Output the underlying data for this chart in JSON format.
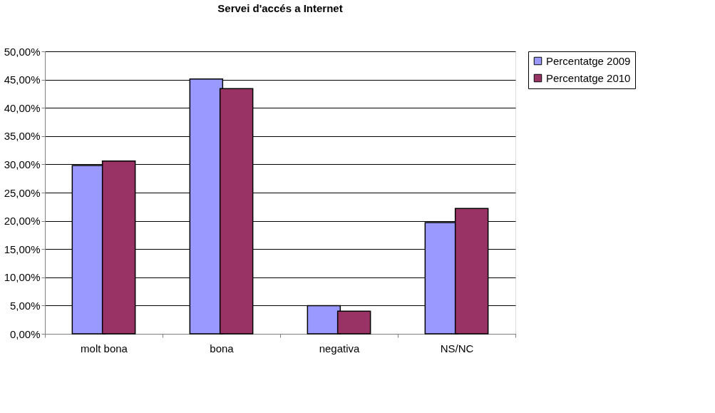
{
  "chart_data": {
    "type": "bar",
    "title": "Servei d'accés a Internet",
    "categories": [
      "molt bona",
      "bona",
      "negativa",
      "NS/NC"
    ],
    "series": [
      {
        "name": "Percentatge 2009",
        "color": "#9999ff",
        "values": [
          29.8,
          45.1,
          5.0,
          19.7
        ]
      },
      {
        "name": "Percentatge 2010",
        "color": "#993366",
        "values": [
          30.6,
          43.4,
          4.0,
          22.2
        ]
      }
    ],
    "ylim": [
      0,
      50
    ],
    "yticks": [
      {
        "value": 0,
        "label": "0,00%"
      },
      {
        "value": 5,
        "label": "5,00%"
      },
      {
        "value": 10,
        "label": "10,00%"
      },
      {
        "value": 15,
        "label": "15,00%"
      },
      {
        "value": 20,
        "label": "20,00%"
      },
      {
        "value": 25,
        "label": "25,00%"
      },
      {
        "value": 30,
        "label": "30,00%"
      },
      {
        "value": 35,
        "label": "35,00%"
      },
      {
        "value": 40,
        "label": "40,00%"
      },
      {
        "value": 45,
        "label": "45,00%"
      },
      {
        "value": 50,
        "label": "50,00%"
      }
    ],
    "grid": "y",
    "legend": "right"
  }
}
